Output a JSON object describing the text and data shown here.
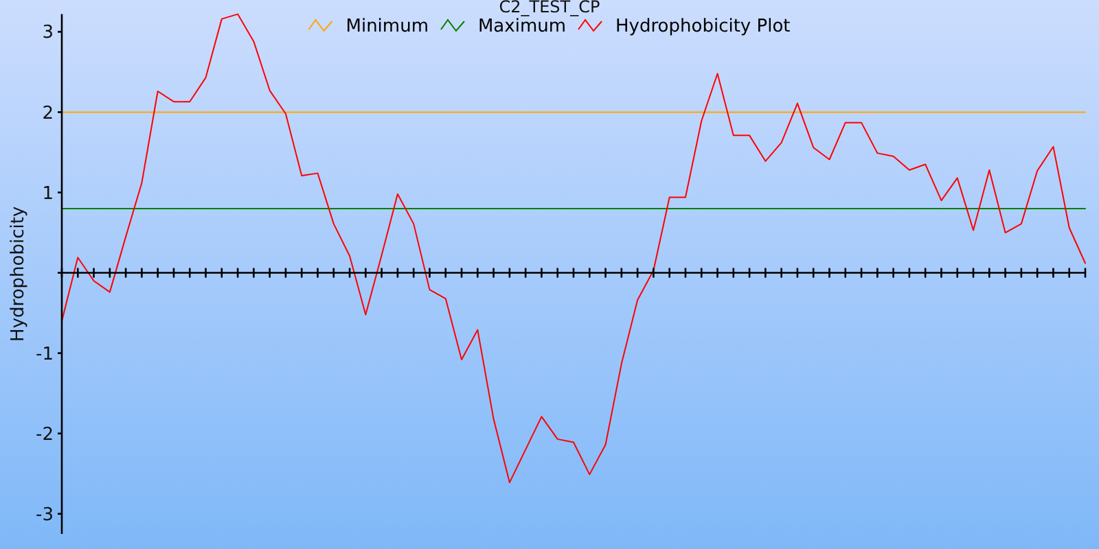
{
  "chart_data": {
    "type": "line",
    "title": "C2_TEST_CP",
    "ylabel": "Hydrophobicity",
    "categories": [
      null,
      null,
      null,
      null,
      null,
      null,
      null,
      null,
      null,
      null,
      null,
      null,
      null,
      null,
      null,
      null,
      null,
      null,
      null,
      null,
      null,
      null,
      null,
      null,
      null,
      null,
      null,
      null,
      null,
      null,
      null,
      null,
      null,
      null,
      null,
      null,
      null,
      null,
      null,
      null,
      null,
      null,
      null,
      null,
      null,
      null,
      null,
      null,
      null,
      null,
      null,
      null,
      null,
      null,
      null,
      null,
      null,
      null,
      null,
      null,
      null,
      null,
      null,
      null,
      null
    ],
    "series": [
      {
        "name": "Minimum",
        "color": "#ffa500",
        "values": [
          2,
          2,
          2,
          2,
          2,
          2,
          2,
          2,
          2,
          2,
          2,
          2,
          2,
          2,
          2,
          2,
          2,
          2,
          2,
          2,
          2,
          2,
          2,
          2,
          2,
          2,
          2,
          2,
          2,
          2,
          2,
          2,
          2,
          2,
          2,
          2,
          2,
          2,
          2,
          2,
          2,
          2,
          2,
          2,
          2,
          2,
          2,
          2,
          2,
          2,
          2,
          2,
          2,
          2,
          2,
          2,
          2,
          2,
          2,
          2,
          2,
          2,
          2,
          2,
          2
        ]
      },
      {
        "name": "Maximum",
        "color": "#008000",
        "values": [
          0.8,
          0.8,
          0.8,
          0.8,
          0.8,
          0.8,
          0.8,
          0.8,
          0.8,
          0.8,
          0.8,
          0.8,
          0.8,
          0.8,
          0.8,
          0.8,
          0.8,
          0.8,
          0.8,
          0.8,
          0.8,
          0.8,
          0.8,
          0.8,
          0.8,
          0.8,
          0.8,
          0.8,
          0.8,
          0.8,
          0.8,
          0.8,
          0.8,
          0.8,
          0.8,
          0.8,
          0.8,
          0.8,
          0.8,
          0.8,
          0.8,
          0.8,
          0.8,
          0.8,
          0.8,
          0.8,
          0.8,
          0.8,
          0.8,
          0.8,
          0.8,
          0.8,
          0.8,
          0.8,
          0.8,
          0.8,
          0.8,
          0.8,
          0.8,
          0.8,
          0.8,
          0.8,
          0.8,
          0.8,
          0.8
        ]
      },
      {
        "name": "Hydrophobicity Plot",
        "color": "#ff0000",
        "values": [
          -0.6,
          0.19,
          -0.1,
          -0.24,
          0.45,
          1.12,
          2.26,
          2.13,
          2.13,
          2.43,
          3.16,
          3.22,
          2.88,
          2.27,
          1.98,
          1.21,
          1.24,
          0.61,
          0.21,
          -0.52,
          0.22,
          0.98,
          0.61,
          -0.21,
          -0.32,
          -1.08,
          -0.71,
          -1.82,
          -2.61,
          -2.2,
          -1.79,
          -2.07,
          -2.11,
          -2.51,
          -2.14,
          -1.13,
          -0.34,
          0.03,
          0.94,
          0.94,
          1.89,
          2.48,
          1.71,
          1.71,
          1.39,
          1.62,
          2.11,
          1.56,
          1.41,
          1.87,
          1.87,
          1.49,
          1.45,
          1.28,
          1.35,
          0.9,
          1.18,
          0.53,
          1.28,
          0.5,
          0.61,
          1.27,
          1.57,
          0.56,
          0.12
        ]
      }
    ],
    "ylim": [
      -3.25,
      3.22
    ],
    "yticks": [
      -3,
      -2,
      -1,
      {
        "value": 0,
        "label": null
      },
      1,
      2,
      3
    ],
    "tick_labels": "y",
    "legend": "top"
  }
}
